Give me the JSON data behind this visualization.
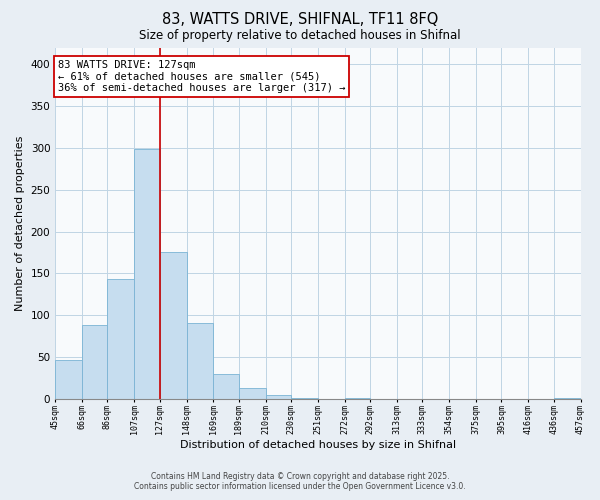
{
  "title": "83, WATTS DRIVE, SHIFNAL, TF11 8FQ",
  "subtitle": "Size of property relative to detached houses in Shifnal",
  "xlabel": "Distribution of detached houses by size in Shifnal",
  "ylabel": "Number of detached properties",
  "bar_color": "#c6ddef",
  "bar_edge_color": "#7ab3d4",
  "bins": [
    45,
    66,
    86,
    107,
    127,
    148,
    169,
    189,
    210,
    230,
    251,
    272,
    292,
    313,
    333,
    354,
    375,
    395,
    416,
    436,
    457
  ],
  "counts": [
    47,
    88,
    143,
    299,
    175,
    91,
    30,
    13,
    5,
    1,
    0,
    1,
    0,
    0,
    0,
    0,
    0,
    0,
    0,
    1
  ],
  "tick_labels": [
    "45sqm",
    "66sqm",
    "86sqm",
    "107sqm",
    "127sqm",
    "148sqm",
    "169sqm",
    "189sqm",
    "210sqm",
    "230sqm",
    "251sqm",
    "272sqm",
    "292sqm",
    "313sqm",
    "333sqm",
    "354sqm",
    "375sqm",
    "395sqm",
    "416sqm",
    "436sqm",
    "457sqm"
  ],
  "vline_x": 127,
  "vline_color": "#cc0000",
  "annotation_text": "83 WATTS DRIVE: 127sqm\n← 61% of detached houses are smaller (545)\n36% of semi-detached houses are larger (317) →",
  "annotation_box_color": "white",
  "annotation_box_edge": "#cc0000",
  "ylim": [
    0,
    420
  ],
  "yticks": [
    0,
    50,
    100,
    150,
    200,
    250,
    300,
    350,
    400
  ],
  "footer_line1": "Contains HM Land Registry data © Crown copyright and database right 2025.",
  "footer_line2": "Contains public sector information licensed under the Open Government Licence v3.0.",
  "bg_color": "#e8eef4",
  "plot_bg_color": "#f8fafc",
  "grid_color": "#c0d4e4"
}
